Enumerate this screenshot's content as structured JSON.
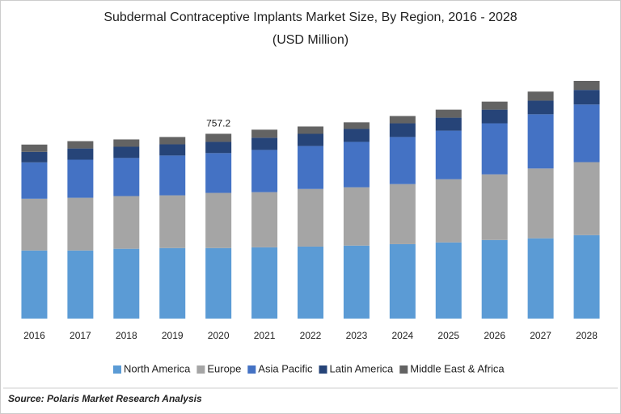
{
  "chart_data": {
    "type": "stacked_bar",
    "title": "Subdermal Contraceptive Implants Market Size, By Region, 2016 - 2028",
    "subtitle": "(USD Million)",
    "source": "Source: Polaris Market Research Analysis",
    "categories": [
      "2016",
      "2017",
      "2018",
      "2019",
      "2020",
      "2021",
      "2022",
      "2023",
      "2024",
      "2025",
      "2026",
      "2027",
      "2028"
    ],
    "series": [
      {
        "name": "North America",
        "color": "#5b9bd5",
        "values": [
          279,
          279,
          286,
          289,
          289,
          292,
          295,
          299,
          305,
          312,
          322,
          329,
          342
        ]
      },
      {
        "name": "Europe",
        "color": "#a5a5a5",
        "values": [
          212,
          216,
          216,
          216,
          226,
          226,
          236,
          239,
          246,
          259,
          269,
          286,
          299
        ]
      },
      {
        "name": "Asia Pacific",
        "color": "#4472c4",
        "values": [
          149,
          156,
          156,
          163,
          163,
          173,
          176,
          186,
          193,
          199,
          209,
          222,
          236
        ]
      },
      {
        "name": "Latin America",
        "color": "#264478",
        "values": [
          43,
          46,
          46,
          46,
          46,
          50,
          50,
          53,
          56,
          53,
          56,
          56,
          60
        ]
      },
      {
        "name": "Middle East & Africa",
        "color": "#636363",
        "values": [
          30,
          30,
          30,
          30,
          33.2,
          33,
          30,
          27,
          30,
          33,
          33,
          37,
          37
        ]
      }
    ],
    "annotation": {
      "x": "2020",
      "value": 757.2
    },
    "legend": "bottom"
  }
}
